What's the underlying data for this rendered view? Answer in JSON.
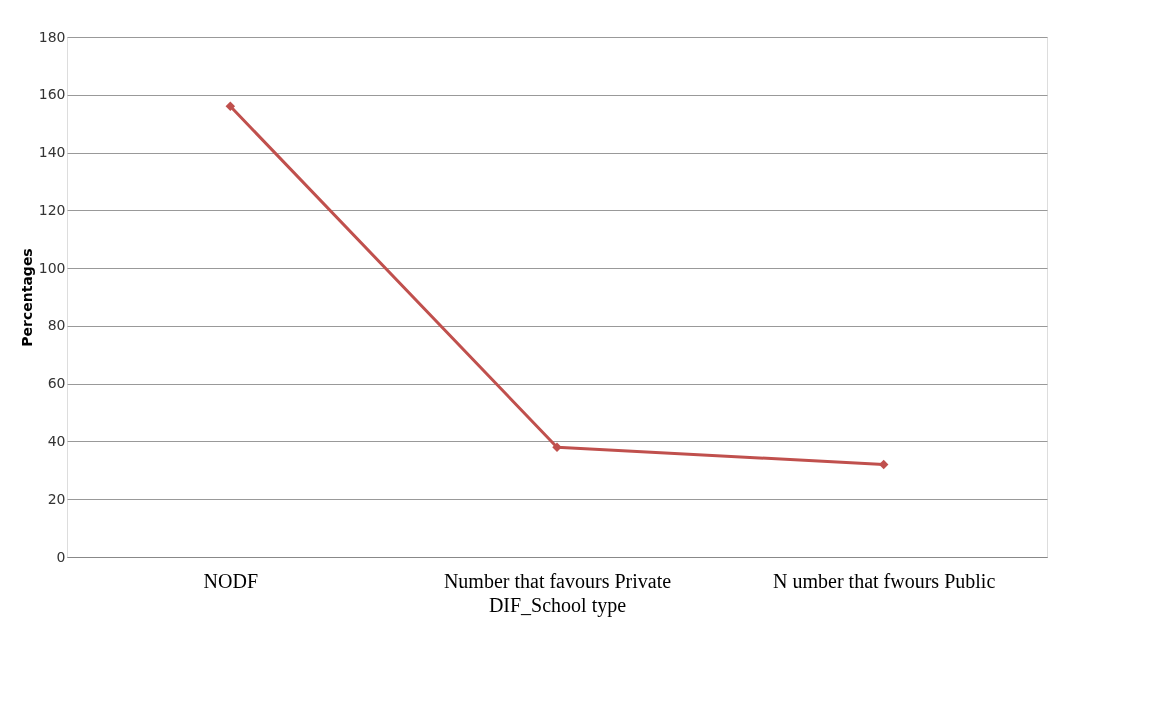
{
  "chart_data": {
    "type": "line",
    "xlabel": "DIF_School type",
    "ylabel": "Percentages",
    "categories": [
      "NODF",
      "Number that favours Private",
      "N umber that fwours Public"
    ],
    "series": [
      {
        "color": "#c0504d",
        "values": [
          156,
          38,
          32
        ]
      }
    ],
    "ylim": [
      0,
      180
    ],
    "yticks": [
      0,
      20,
      40,
      60,
      80,
      100,
      120,
      140,
      160,
      180
    ],
    "grid": "y",
    "marker": "diamond",
    "line_style": "solid",
    "legend": false
  }
}
